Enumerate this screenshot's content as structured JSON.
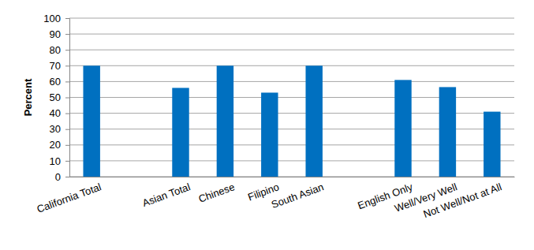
{
  "chart_data": {
    "type": "bar",
    "y_label": "Percent",
    "categories": [
      "California Total",
      null,
      "Asian Total",
      "Chinese",
      "Filipino",
      "South Asian",
      null,
      "English Only",
      "Well/Very Well",
      "Not Well/Not at All"
    ],
    "values": [
      70,
      null,
      56,
      70,
      53,
      70,
      null,
      61,
      56.5,
      41
    ],
    "color": "#0070c0",
    "ylim": [
      0,
      100
    ],
    "yticks": [
      0,
      10,
      20,
      30,
      40,
      50,
      60,
      70,
      80,
      90,
      100
    ],
    "grid": true
  }
}
